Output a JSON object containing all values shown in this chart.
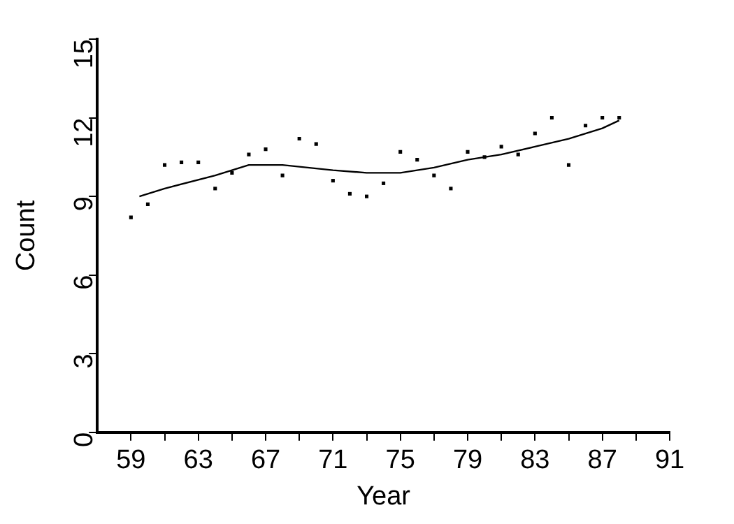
{
  "chart_data": {
    "type": "scatter",
    "xlabel": "Year",
    "ylabel": "Count",
    "xlim": [
      57,
      91
    ],
    "ylim": [
      0,
      15
    ],
    "xticks": [
      59,
      {
        "value": 61,
        "label": null
      },
      63,
      {
        "value": 65,
        "label": null
      },
      67,
      {
        "value": 69,
        "label": null
      },
      71,
      {
        "value": 73,
        "label": null
      },
      75,
      {
        "value": 77,
        "label": null
      },
      79,
      {
        "value": 81,
        "label": null
      },
      83,
      {
        "value": 85,
        "label": null
      },
      87,
      {
        "value": 89,
        "label": null
      },
      91
    ],
    "yticks": [
      0,
      3,
      6,
      9,
      12,
      15
    ],
    "grid": false,
    "legend": false,
    "series": [
      {
        "type": "scatter",
        "marker": "square",
        "color": "#000000",
        "x": [
          59,
          60,
          61,
          62,
          63,
          64,
          65,
          66,
          67,
          68,
          69,
          70,
          71,
          72,
          73,
          74,
          75,
          76,
          77,
          78,
          79,
          80,
          81,
          82,
          83,
          84,
          85,
          86,
          87,
          88
        ],
        "values": [
          8.2,
          8.7,
          10.2,
          10.3,
          10.3,
          9.3,
          9.9,
          10.6,
          10.8,
          9.8,
          11.2,
          11.0,
          9.6,
          9.1,
          9.0,
          9.5,
          10.7,
          10.4,
          9.8,
          9.3,
          10.7,
          10.5,
          10.9,
          10.6,
          11.4,
          12.0,
          10.2,
          11.7,
          12.0,
          12.0
        ]
      },
      {
        "type": "line",
        "marker": "none",
        "line_style": "solid",
        "color": "#000000",
        "x": [
          59.5,
          61,
          64,
          66,
          68,
          71,
          73,
          75,
          77,
          79,
          81,
          83,
          85,
          87,
          88
        ],
        "values": [
          9.0,
          9.3,
          9.8,
          10.2,
          10.2,
          10.0,
          9.9,
          9.9,
          10.1,
          10.4,
          10.6,
          10.9,
          11.2,
          11.6,
          11.9
        ]
      }
    ]
  }
}
